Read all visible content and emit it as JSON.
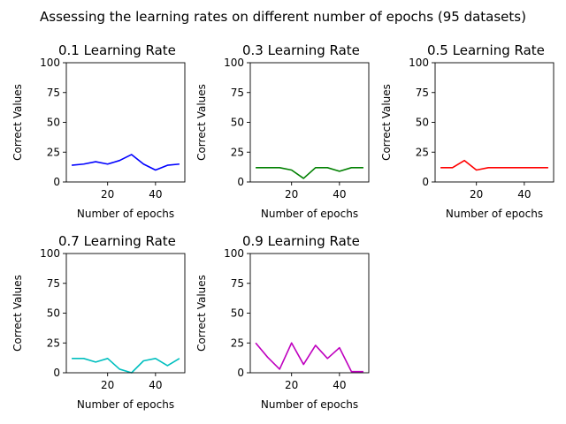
{
  "figure": {
    "title": "Assessing the learning rates on different number of epochs (95 datasets)"
  },
  "chart_data": [
    {
      "type": "line",
      "title": "0.1 Learning Rate",
      "xlabel": "Number of epochs",
      "ylabel": "Correct Values",
      "color": "#0000ff",
      "x": [
        5,
        10,
        15,
        20,
        25,
        30,
        35,
        40,
        45,
        50
      ],
      "values": [
        14,
        15,
        17,
        15,
        18,
        23,
        15,
        10,
        14,
        15
      ],
      "xlim": [
        2.75,
        52.25
      ],
      "ylim": [
        0,
        100
      ],
      "xticks": [
        "20",
        "40"
      ],
      "yticks": [
        "0",
        "25",
        "50",
        "75",
        "100"
      ]
    },
    {
      "type": "line",
      "title": "0.3 Learning Rate",
      "xlabel": "Number of epochs",
      "ylabel": "Correct Values",
      "color": "#008000",
      "x": [
        5,
        10,
        15,
        20,
        25,
        30,
        35,
        40,
        45,
        50
      ],
      "values": [
        12,
        12,
        12,
        10,
        3,
        12,
        12,
        9,
        12,
        12
      ],
      "xlim": [
        2.75,
        52.25
      ],
      "ylim": [
        0,
        100
      ],
      "xticks": [
        "20",
        "40"
      ],
      "yticks": [
        "0",
        "25",
        "50",
        "75",
        "100"
      ]
    },
    {
      "type": "line",
      "title": "0.5 Learning Rate",
      "xlabel": "Number of epochs",
      "ylabel": "Correct Values",
      "color": "#ff0000",
      "x": [
        5,
        10,
        15,
        20,
        25,
        30,
        35,
        40,
        45,
        50
      ],
      "values": [
        12,
        12,
        18,
        10,
        12,
        12,
        12,
        12,
        12,
        12
      ],
      "xlim": [
        2.75,
        52.25
      ],
      "ylim": [
        0,
        100
      ],
      "xticks": [
        "20",
        "40"
      ],
      "yticks": [
        "0",
        "25",
        "50",
        "75",
        "100"
      ]
    },
    {
      "type": "line",
      "title": "0.7 Learning Rate",
      "xlabel": "Number of epochs",
      "ylabel": "Correct Values",
      "color": "#00bfbf",
      "x": [
        5,
        10,
        15,
        20,
        25,
        30,
        35,
        40,
        45,
        50
      ],
      "values": [
        12,
        12,
        9,
        12,
        3,
        0,
        10,
        12,
        6,
        12
      ],
      "xlim": [
        2.75,
        52.25
      ],
      "ylim": [
        0,
        100
      ],
      "xticks": [
        "20",
        "40"
      ],
      "yticks": [
        "0",
        "25",
        "50",
        "75",
        "100"
      ]
    },
    {
      "type": "line",
      "title": "0.9 Learning Rate",
      "xlabel": "Number of epochs",
      "ylabel": "Correct Values",
      "color": "#bf00bf",
      "x": [
        5,
        10,
        15,
        20,
        25,
        30,
        35,
        40,
        45,
        50
      ],
      "values": [
        25,
        13,
        3,
        25,
        7,
        23,
        12,
        21,
        1,
        1
      ],
      "xlim": [
        2.75,
        52.25
      ],
      "ylim": [
        0,
        100
      ],
      "xticks": [
        "20",
        "40"
      ],
      "yticks": [
        "0",
        "25",
        "50",
        "75",
        "100"
      ]
    }
  ]
}
